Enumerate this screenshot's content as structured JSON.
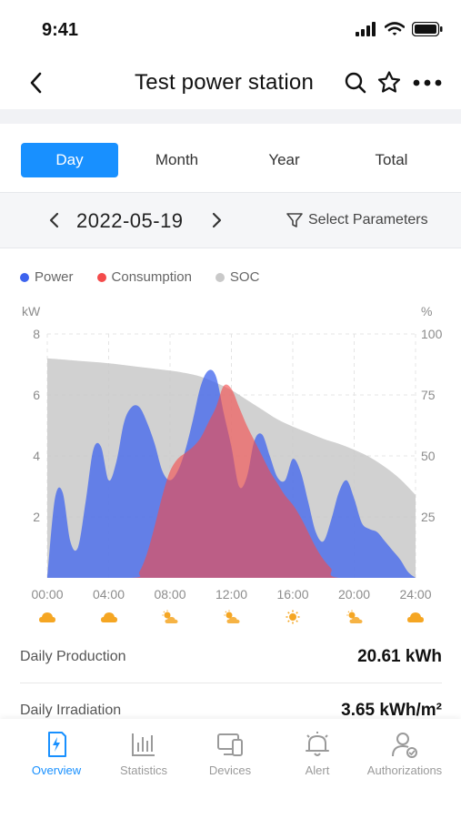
{
  "status_bar": {
    "time": "9:41"
  },
  "nav": {
    "title": "Test power station"
  },
  "tabs": [
    {
      "label": "Day",
      "active": true
    },
    {
      "label": "Month",
      "active": false
    },
    {
      "label": "Year",
      "active": false
    },
    {
      "label": "Total",
      "active": false
    }
  ],
  "date_bar": {
    "date": "2022-05-19",
    "select_params_label": "Select Parameters"
  },
  "legend": [
    {
      "label": "Power",
      "color": "#3d63ee"
    },
    {
      "label": "Consumption",
      "color": "#f44b4b"
    },
    {
      "label": "SOC",
      "color": "#c9c9c9"
    }
  ],
  "chart_data": {
    "type": "area",
    "left_unit": "kW",
    "right_unit": "%",
    "x_labels": [
      "00:00",
      "04:00",
      "08:00",
      "12:00",
      "16:00",
      "20:00",
      "24:00"
    ],
    "y_left_ticks": [
      "8",
      "6",
      "4",
      "2"
    ],
    "y_right_ticks": [
      "100",
      "75",
      "50",
      "25"
    ],
    "ylim_left": [
      0,
      8
    ],
    "ylim_right": [
      0,
      100
    ],
    "xlim": [
      0,
      24
    ],
    "grid": true,
    "series": [
      {
        "name": "SOC",
        "axis": "right",
        "color": "#c9c9c9",
        "x": [
          0,
          2,
          4,
          6,
          8,
          9,
          10,
          11,
          12,
          13,
          14,
          15,
          16,
          17,
          18,
          19,
          20,
          21,
          22,
          23,
          24
        ],
        "values": [
          90,
          89,
          88,
          86.5,
          85,
          84,
          82.5,
          80,
          77,
          73,
          69,
          65,
          62,
          59.5,
          57,
          55,
          52.5,
          49.5,
          45.5,
          40.5,
          34
        ]
      },
      {
        "name": "Power",
        "axis": "left",
        "color": "#3d63ee",
        "x": [
          0,
          0.5,
          1,
          1.5,
          2,
          2.5,
          3,
          3.5,
          4,
          4.5,
          5,
          5.5,
          6,
          6.5,
          7,
          7.5,
          8,
          8.5,
          9,
          9.5,
          10,
          10.5,
          11,
          11.5,
          12,
          12.5,
          13,
          13.5,
          14,
          14.5,
          15,
          15.5,
          16,
          16.5,
          17,
          17.5,
          18,
          18.5,
          19,
          19.5,
          20,
          20.5,
          21,
          21.5,
          22,
          22.5,
          23,
          23.5,
          24
        ],
        "values": [
          0,
          2.6,
          2.8,
          1.2,
          1,
          2.5,
          4.2,
          4.3,
          3.2,
          3.8,
          5.1,
          5.6,
          5.6,
          5.1,
          4.4,
          3.5,
          3.2,
          3.5,
          4.2,
          5.2,
          6.3,
          6.8,
          6.6,
          5.4,
          4.3,
          3.0,
          3.3,
          4.5,
          4.7,
          4.0,
          3.3,
          3.2,
          3.9,
          3.5,
          2.5,
          1.5,
          1.2,
          1.9,
          2.8,
          3.2,
          2.6,
          1.8,
          1.6,
          1.5,
          1.2,
          0.9,
          0.6,
          0.2,
          0
        ]
      },
      {
        "name": "Consumption",
        "axis": "left",
        "color": "#f44b4b",
        "x": [
          0,
          5.5,
          6,
          6.5,
          7,
          7.5,
          8,
          8.5,
          9,
          9.5,
          10,
          10.5,
          11,
          11.5,
          12,
          12.5,
          13,
          13.5,
          14,
          14.5,
          15,
          15.5,
          16,
          16.5,
          17,
          17.5,
          18,
          18.5,
          19,
          24
        ],
        "values": [
          0,
          0,
          0.2,
          0.8,
          1.7,
          2.7,
          3.5,
          3.9,
          4.1,
          4.3,
          4.6,
          5.1,
          5.6,
          6.3,
          6.2,
          5.6,
          5.0,
          4.5,
          4.0,
          3.5,
          3.1,
          2.7,
          2.4,
          2.0,
          1.5,
          1.0,
          0.6,
          0.3,
          0,
          0
        ]
      }
    ],
    "weather": [
      "cloud",
      "cloud",
      "sun-cloud",
      "sun-cloud",
      "sun",
      "sun-cloud",
      "cloud"
    ]
  },
  "summary": [
    {
      "label": "Daily Production",
      "value": "20.61 kWh"
    },
    {
      "label": "Daily Irradiation",
      "value": "3.65 kWh/m²"
    }
  ],
  "tab_bar": [
    {
      "label": "Overview",
      "icon": "overview-icon",
      "active": true
    },
    {
      "label": "Statistics",
      "icon": "statistics-icon",
      "active": false
    },
    {
      "label": "Devices",
      "icon": "devices-icon",
      "active": false
    },
    {
      "label": "Alert",
      "icon": "alert-icon",
      "active": false
    },
    {
      "label": "Authorizations",
      "icon": "authorizations-icon",
      "active": false
    }
  ],
  "colors": {
    "accent": "#1890ff",
    "muted_text": "#9a9a9a",
    "weather_icon": "#f5a623"
  }
}
